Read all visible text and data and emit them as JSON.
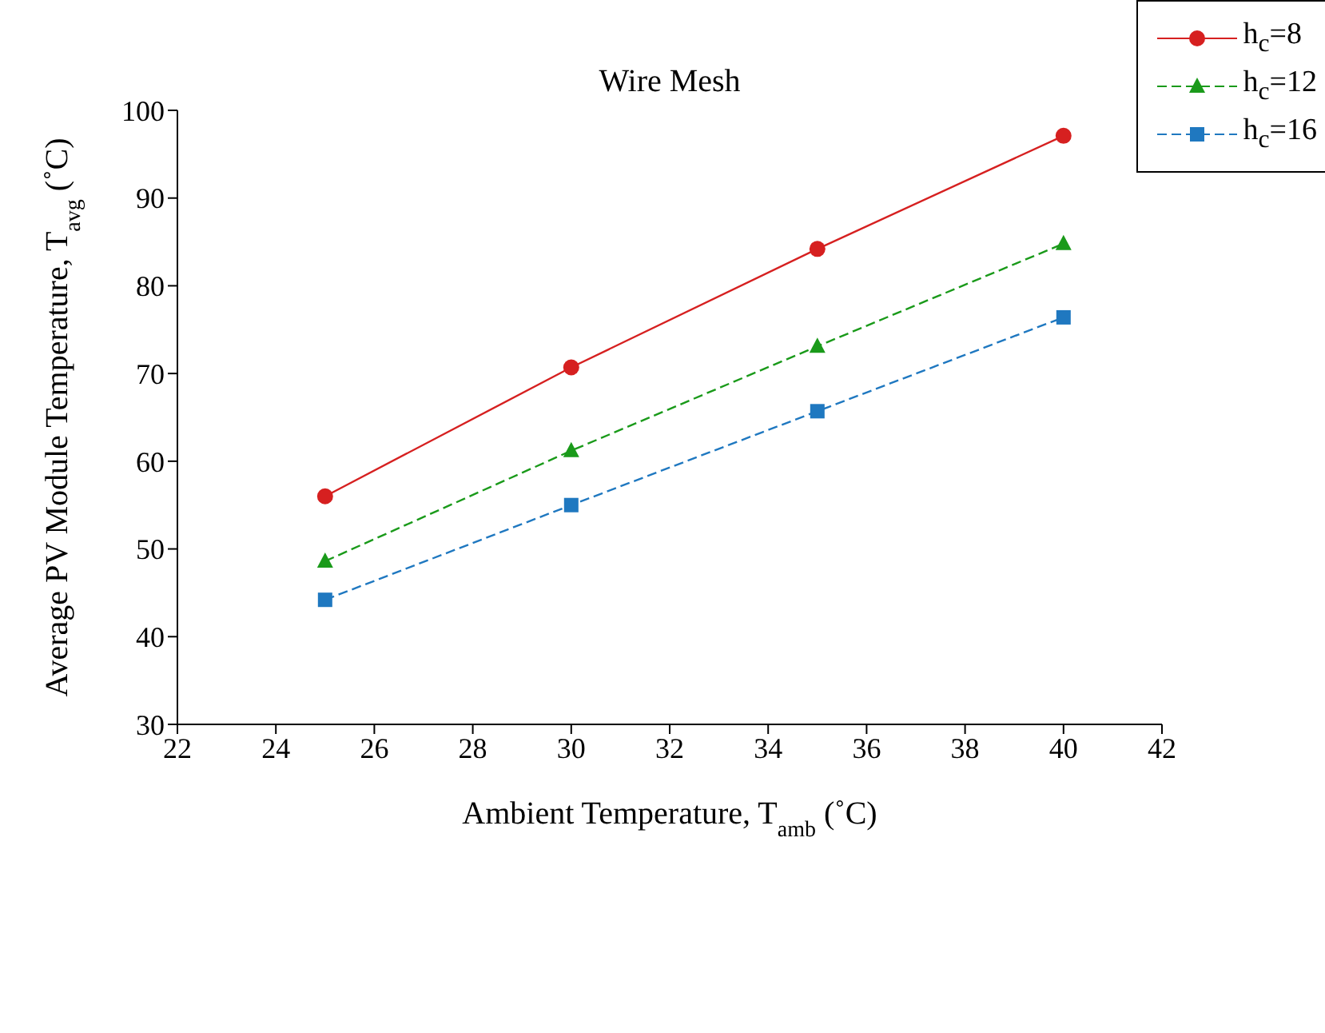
{
  "chart_data": {
    "type": "line",
    "title": "Wire Mesh",
    "xlabel": "Ambient Temperature, T$_{amb}$ (˚C)",
    "ylabel": "Average PV Module Temperature, T$_{avg}$ (˚C)",
    "x": [
      25,
      30,
      35,
      40
    ],
    "series": [
      {
        "name": "h$_{c}$=8",
        "color": "#d62020",
        "values": [
          56.0,
          70.7,
          84.2,
          97.1
        ],
        "marker": "circle",
        "line_style": "solid"
      },
      {
        "name": "h$_{c}$=12",
        "color": "#1a9a1a",
        "values": [
          48.6,
          61.2,
          73.1,
          84.8
        ],
        "marker": "triangle",
        "line_style": "dashed"
      },
      {
        "name": "h$_{c}$=16",
        "color": "#1f78c0",
        "values": [
          44.2,
          55.0,
          65.7,
          76.4
        ],
        "marker": "square",
        "line_style": "dashed"
      }
    ],
    "xlim": [
      22,
      42
    ],
    "xticks": [
      22,
      24,
      26,
      28,
      30,
      32,
      34,
      36,
      38,
      40,
      42
    ],
    "ylim": [
      30,
      100
    ],
    "yticks": [
      30,
      40,
      50,
      60,
      70,
      80,
      90,
      100
    ],
    "grid": false,
    "legend": "top right"
  }
}
